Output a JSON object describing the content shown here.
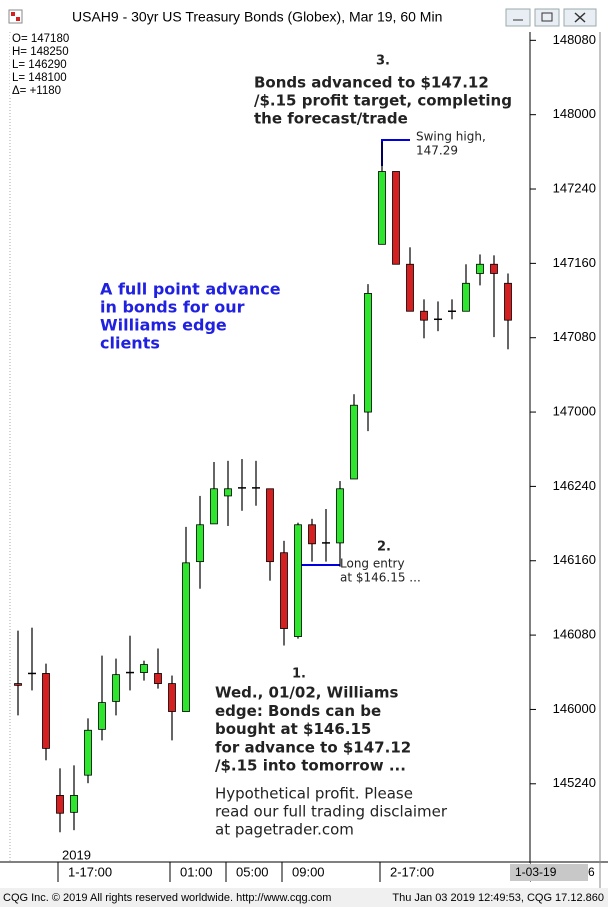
{
  "window": {
    "title": "USAH9 - 30yr US Treasury Bonds (Globex), Mar 19, 60 Min"
  },
  "chart_data": {
    "type": "candlestick",
    "info": [
      "O=  147180",
      "H=  148250",
      "L=  146290",
      "L=  148100",
      "Δ=    +1180"
    ],
    "x_year_label": "2019",
    "categories": [
      null,
      null,
      null,
      "1-17:00",
      null,
      null,
      null,
      null,
      null,
      null,
      null,
      "01:00",
      null,
      null,
      null,
      "05:00",
      null,
      null,
      null,
      "09:00",
      null,
      null,
      null,
      null,
      null,
      null,
      "2-17:00",
      null,
      null,
      null,
      null,
      null,
      null,
      null,
      null,
      null
    ],
    "candles": [
      {
        "open": 146.087,
        "high": 146.265,
        "low": 145.98,
        "close": 146.081
      },
      {
        "open": 146.121,
        "high": 146.275,
        "low": 146.064,
        "close": 146.121
      },
      {
        "open": 146.121,
        "high": 146.154,
        "low": 145.829,
        "close": 145.869
      },
      {
        "open": 145.711,
        "high": 145.802,
        "low": 145.587,
        "close": 145.651
      },
      {
        "open": 145.654,
        "high": 145.812,
        "low": 145.594,
        "close": 145.711
      },
      {
        "open": 145.779,
        "high": 145.97,
        "low": 145.752,
        "close": 145.93
      },
      {
        "open": 145.933,
        "high": 146.181,
        "low": 145.896,
        "close": 146.023
      },
      {
        "open": 146.027,
        "high": 146.171,
        "low": 145.98,
        "close": 146.117
      },
      {
        "open": 146.124,
        "high": 146.248,
        "low": 146.064,
        "close": 146.124
      },
      {
        "open": 146.124,
        "high": 146.164,
        "low": 146.097,
        "close": 146.151
      },
      {
        "open": 146.121,
        "high": 146.205,
        "low": 146.07,
        "close": 146.087
      },
      {
        "open": 146.087,
        "high": 146.114,
        "low": 145.896,
        "close": 145.993
      },
      {
        "open": 145.993,
        "high": 146.614,
        "low": 145.993,
        "close": 146.493
      },
      {
        "open": 146.497,
        "high": 146.718,
        "low": 146.406,
        "close": 146.621
      },
      {
        "open": 146.624,
        "high": 146.832,
        "low": 146.624,
        "close": 146.742
      },
      {
        "open": 146.718,
        "high": 146.836,
        "low": 146.617,
        "close": 146.742
      },
      {
        "open": 146.745,
        "high": 146.842,
        "low": 146.668,
        "close": 146.745
      },
      {
        "open": 146.745,
        "high": 146.836,
        "low": 146.685,
        "close": 146.745
      },
      {
        "open": 146.742,
        "high": 146.742,
        "low": 146.433,
        "close": 146.497
      },
      {
        "open": 146.527,
        "high": 146.567,
        "low": 146.215,
        "close": 146.272
      },
      {
        "open": 146.245,
        "high": 146.628,
        "low": 146.238,
        "close": 146.621
      },
      {
        "open": 146.621,
        "high": 146.641,
        "low": 146.497,
        "close": 146.557
      },
      {
        "open": 146.56,
        "high": 146.674,
        "low": 146.497,
        "close": 146.56
      },
      {
        "open": 146.56,
        "high": 146.768,
        "low": 146.48,
        "close": 146.742
      },
      {
        "open": 146.775,
        "high": 147.06,
        "low": 146.775,
        "close": 147.023
      },
      {
        "open": 147.0,
        "high": 147.43,
        "low": 146.936,
        "close": 147.399
      },
      {
        "open": 147.564,
        "high": 147.909,
        "low": 147.564,
        "close": 147.809
      },
      {
        "open": 147.809,
        "high": 147.809,
        "low": 147.497,
        "close": 147.497
      },
      {
        "open": 147.497,
        "high": 147.554,
        "low": 147.339,
        "close": 147.339
      },
      {
        "open": 147.339,
        "high": 147.379,
        "low": 147.248,
        "close": 147.309
      },
      {
        "open": 147.312,
        "high": 147.372,
        "low": 147.272,
        "close": 147.312
      },
      {
        "open": 147.339,
        "high": 147.379,
        "low": 147.312,
        "close": 147.339
      },
      {
        "open": 147.339,
        "high": 147.497,
        "low": 147.339,
        "close": 147.433
      },
      {
        "open": 147.466,
        "high": 147.53,
        "low": 147.426,
        "close": 147.497
      },
      {
        "open": 147.497,
        "high": 147.527,
        "low": 147.252,
        "close": 147.466
      },
      {
        "open": 147.433,
        "high": 147.466,
        "low": 147.211,
        "close": 147.309
      }
    ],
    "colors": {
      "up": "#2ee62e",
      "down": "#d42020",
      "doji": "#000000"
    },
    "ylim": [
      145.487,
      148.278
    ],
    "yticks": [
      {
        "value": 145.75,
        "label": "145240"
      },
      {
        "value": 146.0,
        "label": "146000"
      },
      {
        "value": 146.25,
        "label": "146080"
      },
      {
        "value": 146.5,
        "label": "146160"
      },
      {
        "value": 146.75,
        "label": "146240"
      },
      {
        "value": 147.0,
        "label": "147000"
      },
      {
        "value": 147.25,
        "label": "147080"
      },
      {
        "value": 147.5,
        "label": "147160"
      },
      {
        "value": 147.75,
        "label": "147240"
      },
      {
        "value": 148.0,
        "label": "148000"
      },
      {
        "value": 148.25,
        "label": "148080"
      }
    ],
    "annotations": [
      {
        "lines": [
          "3."
        ]
      },
      {
        "lines": [
          "Bonds advanced to $147.12",
          "/$.15 profit target, completing",
          "the forecast/trade"
        ]
      },
      {
        "lines": [
          "A full point advance",
          "in bonds for our",
          "Williams edge",
          "clients"
        ]
      },
      {
        "lines": [
          "Swing high,",
          "147.29"
        ]
      },
      {
        "lines": [
          "2."
        ]
      },
      {
        "lines": [
          "Long entry",
          "at $146.15 ..."
        ]
      },
      {
        "lines": [
          "1."
        ]
      },
      {
        "lines": [
          "Wed., 01/02, Williams",
          "edge: Bonds can be",
          "bought at $146.15",
          "for advance to $147.12",
          "/$.15 into tomorrow ..."
        ]
      },
      {
        "lines": [
          "Hypothetical profit. Please",
          "read our full trading disclaimer",
          "at pagetrader.com"
        ]
      }
    ]
  },
  "status_bar": {
    "left": "CQG Inc. © 2019 All rights reserved worldwide. http://www.cqg.com",
    "right": "Thu Jan 03 2019 12:49:53, CQG 17.12.860",
    "date_box": "1-03-19",
    "page": "6"
  }
}
